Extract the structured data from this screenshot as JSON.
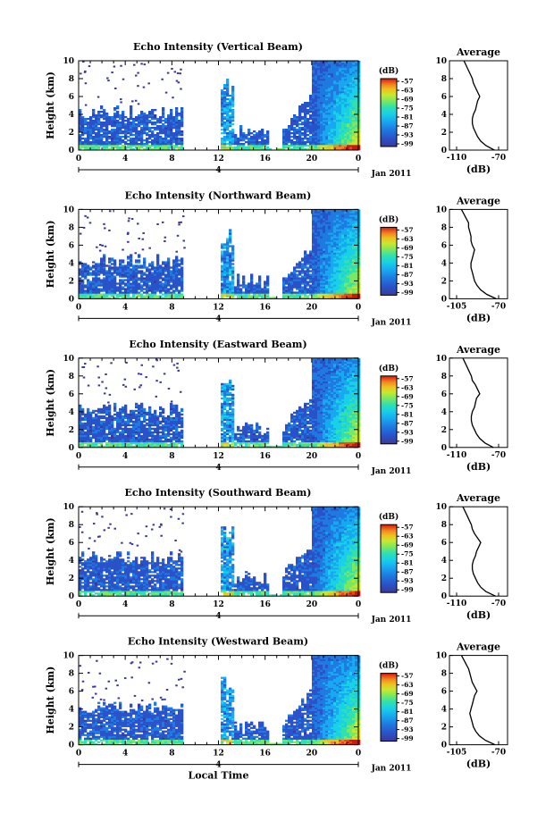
{
  "chart_data": [
    {
      "type": "heatmap",
      "title": "Echo Intensity (Vertical Beam)",
      "ylabel": "Height (km)",
      "y_ticks": [
        "0",
        "2",
        "4",
        "6",
        "8",
        "10"
      ],
      "x_ticks": [
        "0",
        "4",
        "8",
        "12",
        "16",
        "20",
        "0"
      ],
      "date_label": "4",
      "date_suffix": "Jan 2011",
      "ylim": [
        0,
        10
      ],
      "xlim": [
        0,
        24
      ],
      "colorbar": {
        "label": "(dB)",
        "ticks": [
          "-57",
          "-63",
          "-69",
          "-75",
          "-81",
          "-87",
          "-93",
          "-99"
        ]
      },
      "profile": {
        "title": "Average",
        "xlabel": "(dB)",
        "x_ticks": [
          "-110",
          "-70"
        ],
        "y_ticks": [
          "0",
          "2",
          "4",
          "6",
          "8",
          "10"
        ],
        "heights": [
          0,
          0.5,
          1,
          1.5,
          2,
          2.5,
          3,
          3.5,
          4,
          4.5,
          5,
          5.5,
          6,
          6.5,
          7,
          7.5,
          8,
          8.5,
          9,
          9.5,
          10
        ],
        "values": [
          -74,
          -82,
          -87,
          -90,
          -92,
          -94,
          -95,
          -95,
          -94,
          -92,
          -91,
          -90,
          -88,
          -90,
          -92,
          -94,
          -95,
          -97,
          -99,
          -101,
          -103
        ]
      }
    },
    {
      "type": "heatmap",
      "title": "Echo Intensity (Northward Beam)",
      "ylabel": "Height (km)",
      "y_ticks": [
        "0",
        "2",
        "4",
        "6",
        "8",
        "10"
      ],
      "x_ticks": [
        "0",
        "4",
        "8",
        "12",
        "16",
        "20",
        "0"
      ],
      "date_label": "4",
      "date_suffix": "Jan 2011",
      "ylim": [
        0,
        10
      ],
      "xlim": [
        0,
        24
      ],
      "colorbar": {
        "label": "(dB)",
        "ticks": [
          "-57",
          "-63",
          "-69",
          "-75",
          "-81",
          "-87",
          "-93",
          "-99"
        ]
      },
      "profile": {
        "title": "Average",
        "xlabel": "(dB)",
        "x_ticks": [
          "-105",
          "-70"
        ],
        "y_ticks": [
          "0",
          "2",
          "4",
          "6",
          "8",
          "10"
        ],
        "heights": [
          0,
          0.5,
          1,
          1.5,
          2,
          2.5,
          3,
          3.5,
          4,
          4.5,
          5,
          5.5,
          6,
          6.5,
          7,
          7.5,
          8,
          8.5,
          9,
          9.5,
          10
        ],
        "values": [
          -72,
          -80,
          -85,
          -88,
          -90,
          -91,
          -92,
          -93,
          -93,
          -92,
          -91,
          -90,
          -92,
          -93,
          -93,
          -94,
          -95,
          -95,
          -97,
          -99,
          -101
        ]
      }
    },
    {
      "type": "heatmap",
      "title": "Echo Intensity (Eastward Beam)",
      "ylabel": "Height (km)",
      "y_ticks": [
        "0",
        "2",
        "4",
        "6",
        "8",
        "10"
      ],
      "x_ticks": [
        "0",
        "4",
        "8",
        "12",
        "16",
        "20",
        "0"
      ],
      "date_label": "4",
      "date_suffix": "Jan 2011",
      "ylim": [
        0,
        10
      ],
      "xlim": [
        0,
        24
      ],
      "colorbar": {
        "label": "(dB)",
        "ticks": [
          "-57",
          "-63",
          "-69",
          "-75",
          "-81",
          "-87",
          "-93",
          "-99"
        ]
      },
      "profile": {
        "title": "Average",
        "xlabel": "(dB)",
        "x_ticks": [
          "-110",
          "-70"
        ],
        "y_ticks": [
          "0",
          "2",
          "4",
          "6",
          "8",
          "10"
        ],
        "heights": [
          0,
          0.5,
          1,
          1.5,
          2,
          2.5,
          3,
          3.5,
          4,
          4.5,
          5,
          5.5,
          6,
          6.5,
          7,
          7.5,
          8,
          8.5,
          9,
          9.5,
          10
        ],
        "values": [
          -75,
          -83,
          -88,
          -91,
          -93,
          -95,
          -96,
          -96,
          -95,
          -93,
          -92,
          -91,
          -88,
          -90,
          -92,
          -95,
          -96,
          -98,
          -100,
          -102,
          -104
        ]
      }
    },
    {
      "type": "heatmap",
      "title": "Echo Intensity (Southward Beam)",
      "ylabel": "Height (km)",
      "y_ticks": [
        "0",
        "2",
        "4",
        "6",
        "8",
        "10"
      ],
      "x_ticks": [
        "0",
        "4",
        "8",
        "12",
        "16",
        "20",
        "0"
      ],
      "date_label": "4",
      "date_suffix": "Jan 2011",
      "ylim": [
        0,
        10
      ],
      "xlim": [
        0,
        24
      ],
      "colorbar": {
        "label": "(dB)",
        "ticks": [
          "-57",
          "-63",
          "-69",
          "-75",
          "-81",
          "-87",
          "-93",
          "-99"
        ]
      },
      "profile": {
        "title": "Average",
        "xlabel": "(dB)",
        "x_ticks": [
          "-110",
          "-70"
        ],
        "y_ticks": [
          "0",
          "2",
          "4",
          "6",
          "8",
          "10"
        ],
        "heights": [
          0,
          0.5,
          1,
          1.5,
          2,
          2.5,
          3,
          3.5,
          4,
          4.5,
          5,
          5.5,
          6,
          6.5,
          7,
          7.5,
          8,
          8.5,
          9,
          9.5,
          10
        ],
        "values": [
          -73,
          -82,
          -87,
          -90,
          -92,
          -94,
          -95,
          -95,
          -94,
          -92,
          -91,
          -89,
          -87,
          -90,
          -93,
          -95,
          -96,
          -98,
          -100,
          -102,
          -104
        ]
      }
    },
    {
      "type": "heatmap",
      "title": "Echo Intensity (Westward Beam)",
      "ylabel": "Height (km)",
      "y_ticks": [
        "0",
        "2",
        "4",
        "6",
        "8",
        "10"
      ],
      "x_ticks": [
        "0",
        "4",
        "8",
        "12",
        "16",
        "20",
        "0"
      ],
      "date_label": "4",
      "date_suffix": "Jan 2011",
      "xlabel": "Local Time",
      "ylim": [
        0,
        10
      ],
      "xlim": [
        0,
        24
      ],
      "colorbar": {
        "label": "(dB)",
        "ticks": [
          "-57",
          "-63",
          "-69",
          "-75",
          "-81",
          "-87",
          "-93",
          "-99"
        ]
      },
      "profile": {
        "title": "Average",
        "xlabel": "(dB)",
        "x_ticks": [
          "-105",
          "-70"
        ],
        "y_ticks": [
          "0",
          "2",
          "4",
          "6",
          "8",
          "10"
        ],
        "heights": [
          0,
          0.5,
          1,
          1.5,
          2,
          2.5,
          3,
          3.5,
          4,
          4.5,
          5,
          5.5,
          6,
          6.5,
          7,
          7.5,
          8,
          8.5,
          9,
          9.5,
          10
        ],
        "values": [
          -73,
          -81,
          -86,
          -89,
          -91,
          -92,
          -93,
          -94,
          -93,
          -92,
          -91,
          -90,
          -88,
          -90,
          -92,
          -93,
          -94,
          -95,
          -97,
          -99,
          -101
        ]
      }
    }
  ],
  "colors": {
    "colormap": [
      "#3a3a9a",
      "#2a52c8",
      "#1e7ae0",
      "#18a8f0",
      "#18d0e8",
      "#30e0b0",
      "#7ae860",
      "#c8e830",
      "#f0c020",
      "#f08820",
      "#e84818",
      "#c81810"
    ],
    "background": "#ffffff"
  }
}
